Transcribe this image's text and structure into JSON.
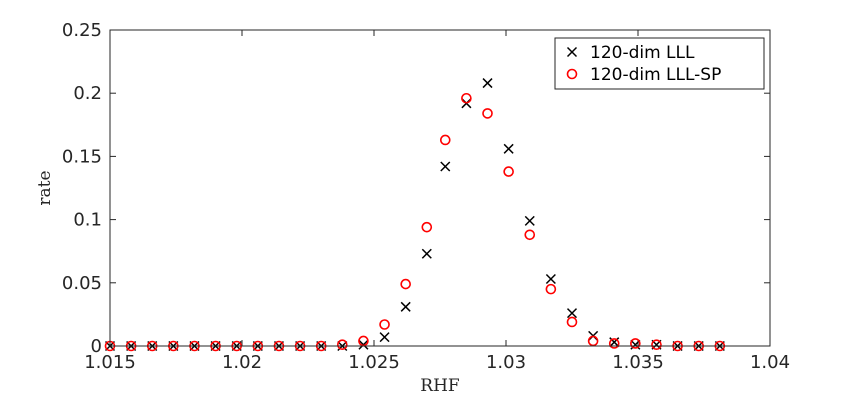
{
  "chart_data": {
    "type": "scatter",
    "xlabel": "RHF",
    "ylabel": "rate",
    "xlim": [
      1.015,
      1.04
    ],
    "ylim": [
      0,
      0.25
    ],
    "xticks": [
      1.015,
      1.02,
      1.025,
      1.03,
      1.035,
      1.04
    ],
    "xtick_labels": [
      "1.015",
      "1.02",
      "1.025",
      "1.03",
      "1.035",
      "1.04"
    ],
    "yticks": [
      0,
      0.05,
      0.1,
      0.15,
      0.2,
      0.25
    ],
    "ytick_labels": [
      "0",
      "0.05",
      "0.1",
      "0.15",
      "0.2",
      "0.25"
    ],
    "grid": false,
    "legend_position": "top-right",
    "x": [
      1.015,
      1.0158,
      1.0166,
      1.0174,
      1.0182,
      1.019,
      1.0198,
      1.0206,
      1.0214,
      1.0222,
      1.023,
      1.0238,
      1.0246,
      1.0254,
      1.0262,
      1.027,
      1.0277,
      1.0285,
      1.0293,
      1.0301,
      1.0309,
      1.0317,
      1.0325,
      1.0333,
      1.0341,
      1.0349,
      1.0357,
      1.0365,
      1.0373,
      1.0381
    ],
    "series": [
      {
        "name": "120-dim LLL",
        "marker": "x",
        "color": "#000000",
        "values": [
          0,
          0,
          0,
          0,
          0,
          0,
          0,
          0,
          0,
          0,
          0,
          0,
          0.001,
          0.007,
          0.031,
          0.073,
          0.142,
          0.192,
          0.208,
          0.156,
          0.099,
          0.053,
          0.026,
          0.008,
          0.003,
          0.001,
          0.001,
          0,
          0,
          0
        ]
      },
      {
        "name": "120-dim LLL-SP",
        "marker": "o",
        "color": "#ff0000",
        "values": [
          0,
          0,
          0,
          0,
          0,
          0,
          0,
          0,
          0,
          0,
          0,
          0.001,
          0.004,
          0.017,
          0.049,
          0.094,
          0.163,
          0.196,
          0.184,
          0.138,
          0.088,
          0.045,
          0.019,
          0.004,
          0.002,
          0.002,
          0.001,
          0,
          0,
          0
        ]
      }
    ]
  }
}
